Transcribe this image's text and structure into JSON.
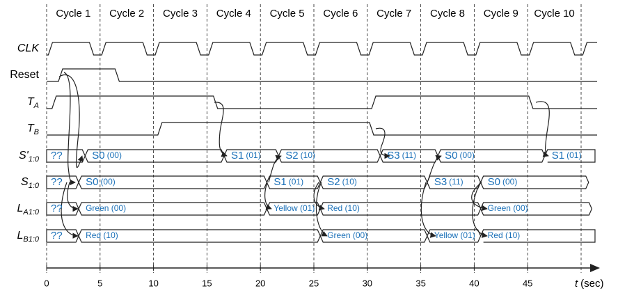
{
  "header": {
    "cycles": [
      "Cycle 1",
      "Cycle 2",
      "Cycle 3",
      "Cycle 4",
      "Cycle 5",
      "Cycle 6",
      "Cycle 7",
      "Cycle 8",
      "Cycle 9",
      "Cycle 10"
    ]
  },
  "signals": [
    {
      "name": "CLK"
    },
    {
      "name": "Reset"
    },
    {
      "name": "T",
      "sub": "A"
    },
    {
      "name": "T",
      "sub": "B"
    },
    {
      "name": "S'",
      "sub": "1:0",
      "segments": [
        {
          "state": "??"
        },
        {
          "state": "S0",
          "code": "(00)"
        },
        {
          "state": "S1",
          "code": "(01)"
        },
        {
          "state": "S2",
          "code": "(10)"
        },
        {
          "state": "S3",
          "code": "(11)"
        },
        {
          "state": "S0",
          "code": "(00)"
        },
        {
          "state": "S1",
          "code": "(01)"
        }
      ]
    },
    {
      "name": "S",
      "sub": "1:0",
      "segments": [
        {
          "state": "??"
        },
        {
          "state": "S0",
          "code": "(00)"
        },
        {
          "state": "S1",
          "code": "(01)"
        },
        {
          "state": "S2",
          "code": "(10)"
        },
        {
          "state": "S3",
          "code": "(11)"
        },
        {
          "state": "S0",
          "code": "(00)"
        }
      ]
    },
    {
      "name": "L",
      "sub": "A1:0",
      "segments": [
        {
          "state": "??"
        },
        {
          "label": "Green (00)"
        },
        {
          "label": "Yellow (01)"
        },
        {
          "label": "Red (10)"
        },
        {
          "label": "Green (00)"
        }
      ]
    },
    {
      "name": "L",
      "sub": "B1:0",
      "segments": [
        {
          "state": "??"
        },
        {
          "label": "Red (10)"
        },
        {
          "label": "Green (00)"
        },
        {
          "label": "Yellow (01)"
        },
        {
          "label": "Red (10)"
        }
      ]
    }
  ],
  "axis": {
    "ticks": [
      0,
      5,
      10,
      15,
      20,
      25,
      30,
      35,
      40,
      45
    ],
    "variable": "t",
    "unit": "(sec)"
  }
}
